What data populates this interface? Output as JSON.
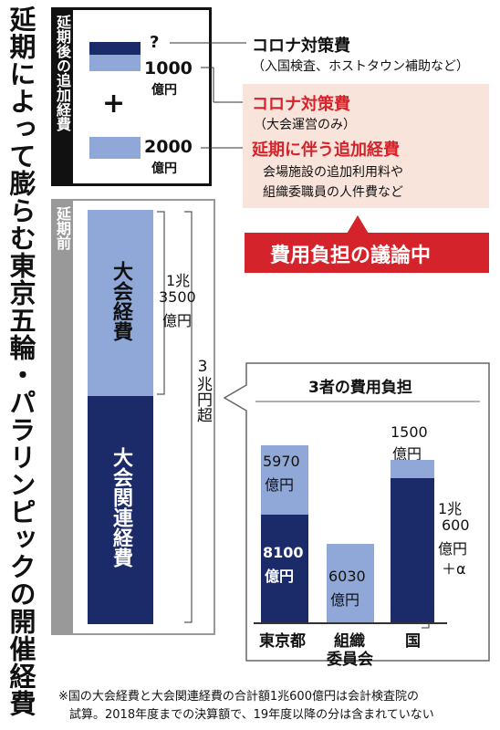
{
  "main_title": "延期によって膨らむ東京五輪・パラリンピックの開催経費",
  "after": {
    "label": "延期後の追加経費",
    "q_value": "?",
    "v1000": "1000",
    "unit1": "億円",
    "plus": "+",
    "v2000": "2000",
    "unit2": "億円",
    "corona_measure": "コロナ対策費",
    "corona_measure_note": "（入国検査、ホストタウン補助など）",
    "corona_games": "コロナ対策費",
    "corona_games_note": "（大会運営のみ）",
    "delay_cost": "延期に伴う追加経費",
    "delay_cost_note1": "会場施設の追加利用料や",
    "delay_cost_note2": "組織委職員の人件費など",
    "debate": "費用負担の議論中"
  },
  "before": {
    "label": "延期前",
    "games_cost": "大会経費",
    "related_cost": "大会関連経費",
    "games_value_1": "1兆",
    "games_value_2": "3500",
    "games_value_3": "億円",
    "total": "3兆円超"
  },
  "burden": {
    "title": "3者の費用負担",
    "tokyo_games_value": "5970",
    "tokyo_games_unit": "億円",
    "tokyo_related_value": "8100",
    "tokyo_related_unit": "億円",
    "oc_value": "6030",
    "oc_unit": "億円",
    "country_top_value": "1500",
    "country_top_unit": "億円",
    "country_total_1": "1兆",
    "country_total_2": "600",
    "country_total_3": "億円",
    "country_total_4": "＋α",
    "cat_tokyo": "東京都",
    "cat_oc_1": "組織",
    "cat_oc_2": "委員会",
    "cat_country": "国"
  },
  "footnote_1": "※国の大会経費と大会関連経費の合計額1兆600億円は会計検査院の",
  "footnote_2": "試算。2018年度までの決算額で、19年度以降の分は含まれていない",
  "colors": {
    "games_cost": "#8fa8d8",
    "related_cost": "#1b2a68",
    "accent_red": "#d4232a",
    "panel_gray": "#999999"
  },
  "chart_data": {
    "type": "bar",
    "title": "3者の費用負担",
    "categories": [
      "東京都",
      "組織委員会",
      "国"
    ],
    "series": [
      {
        "name": "大会関連経費",
        "values": [
          8100,
          0,
          null
        ]
      },
      {
        "name": "大会経費",
        "values": [
          5970,
          6030,
          1500
        ]
      }
    ],
    "annotations": [
      "国：1兆600億円＋α"
    ],
    "unit": "億円"
  }
}
